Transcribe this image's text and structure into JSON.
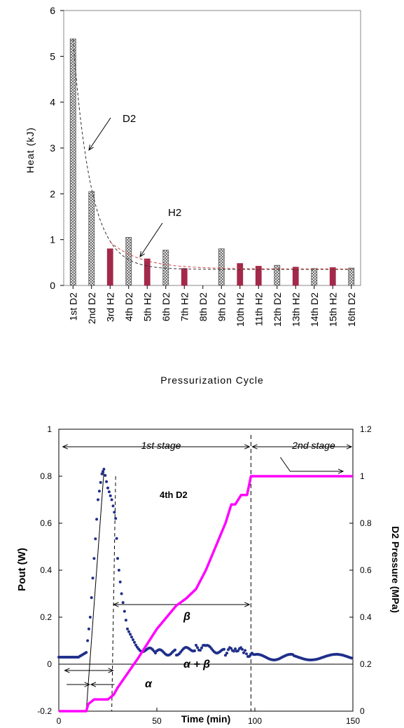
{
  "chart_data": [
    {
      "type": "bar",
      "title": "",
      "xlabel": "Pressurization Cycle",
      "ylabel": "Heat (kJ)",
      "ylim": [
        0,
        6
      ],
      "yticks": [
        "0",
        "1",
        "2",
        "3",
        "4",
        "5",
        "6"
      ],
      "grid": false,
      "categories": [
        "1st D2",
        "2nd D2",
        "3rd H2",
        "4th D2",
        "5th H2",
        "6th D2",
        "7th H2",
        "8th D2",
        "9th D2",
        "10th H2",
        "11th H2",
        "12th D2",
        "13th H2",
        "14th D2",
        "15th H2",
        "16th D2"
      ],
      "values": [
        5.38,
        2.05,
        0.8,
        1.05,
        0.58,
        0.77,
        0.37,
        null,
        0.8,
        0.48,
        0.42,
        0.44,
        0.4,
        0.37,
        0.39,
        0.38
      ],
      "gas": [
        "D2",
        "D2",
        "H2",
        "D2",
        "H2",
        "D2",
        "H2",
        "D2",
        "D2",
        "H2",
        "H2",
        "D2",
        "H2",
        "D2",
        "H2",
        "D2"
      ],
      "colors": {
        "D2": "#ffffff",
        "H2": "#a3294a",
        "d2_hatch": "#555555",
        "h2_fit": "#d04040"
      },
      "annotations": [
        "D2",
        "H2"
      ],
      "fits": {
        "D2": {
          "a": 3.36,
          "b": 1.05,
          "c": 0.35
        },
        "H2": {
          "from": 2,
          "a": 0.59,
          "b": 0.6,
          "c": 0.36
        }
      }
    },
    {
      "type": "line",
      "title": "",
      "xlabel": "Time (min)",
      "ylabel": "Pout (W)",
      "y2label": "D2 Pressure (MPa)",
      "xlim": [
        0,
        150
      ],
      "ylim": [
        -0.2,
        1
      ],
      "y2lim": [
        0,
        1.2
      ],
      "xticks": [
        "0",
        "50",
        "100",
        "150"
      ],
      "yticks": [
        "-0.2",
        "0",
        "0.2",
        "0.4",
        "0.6",
        "0.8",
        "1"
      ],
      "y2ticks": [
        "0",
        "0.2",
        "0.4",
        "0.6",
        "0.8",
        "1",
        "1.2"
      ],
      "grid": false,
      "annotations": [
        "1st stage",
        "2nd stage",
        "4th D2",
        "β",
        "α + β",
        "α"
      ],
      "colors": {
        "pout": "#1f2f8a",
        "pressure": "#ff00ff"
      },
      "series": [
        {
          "axis": "left",
          "style": "dots",
          "points": [
            [
              0,
              0.03
            ],
            [
              10,
              0.03
            ],
            [
              14,
              0.05
            ],
            [
              16,
              0.2
            ],
            [
              18,
              0.45
            ],
            [
              20,
              0.7
            ],
            [
              22,
              0.81
            ],
            [
              23,
              0.83
            ],
            [
              25,
              0.75
            ],
            [
              27,
              0.7
            ],
            [
              29,
              0.62
            ],
            [
              30,
              0.45
            ],
            [
              32,
              0.3
            ],
            [
              35,
              0.15
            ],
            [
              40,
              0.07
            ],
            [
              50,
              0.05
            ],
            [
              60,
              0.05
            ],
            [
              70,
              0.07
            ],
            [
              75,
              0.07
            ],
            [
              85,
              0.05
            ],
            [
              90,
              0.07
            ],
            [
              95,
              0.05
            ],
            [
              100,
              0.03
            ],
            [
              120,
              0.03
            ],
            [
              150,
              0.03
            ]
          ]
        },
        {
          "axis": "right",
          "style": "line",
          "points": [
            [
              0,
              0
            ],
            [
              14,
              0
            ],
            [
              15,
              0.03
            ],
            [
              18,
              0.05
            ],
            [
              25,
              0.05
            ],
            [
              28,
              0.07
            ],
            [
              30,
              0.1
            ],
            [
              40,
              0.22
            ],
            [
              50,
              0.35
            ],
            [
              60,
              0.45
            ],
            [
              65,
              0.48
            ],
            [
              70,
              0.52
            ],
            [
              75,
              0.6
            ],
            [
              80,
              0.7
            ],
            [
              85,
              0.8
            ],
            [
              88,
              0.88
            ],
            [
              90,
              0.88
            ],
            [
              93,
              0.92
            ],
            [
              96,
              0.92
            ],
            [
              98,
              1.0
            ],
            [
              100,
              1.0
            ],
            [
              150,
              1.0
            ]
          ]
        }
      ],
      "guides": {
        "fit_line": [
          [
            14,
            -0.2
          ],
          [
            23,
            0.82
          ]
        ],
        "stage_boundary": 98,
        "alpha_start": 16,
        "alpha_end": 27
      }
    }
  ]
}
